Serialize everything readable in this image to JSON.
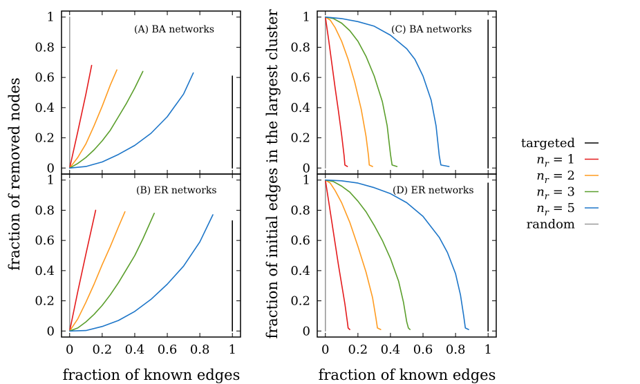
{
  "figure": {
    "xlabel_left": "fraction of known edges",
    "xlabel_right": "fraction of known edges",
    "ylabel_left": "fraction of removed nodes",
    "ylabel_right": "fraction of initial edges in the largest cluster"
  },
  "legend": {
    "position": "right",
    "entries": [
      {
        "key": "targeted",
        "label": "targeted",
        "color": "#000000"
      },
      {
        "key": "nr1",
        "label": "n_r = 1",
        "color": "#e41a1c"
      },
      {
        "key": "nr2",
        "label": "n_r = 2",
        "color": "#ff9b1f"
      },
      {
        "key": "nr3",
        "label": "n_r = 3",
        "color": "#5a9e2b"
      },
      {
        "key": "nr5",
        "label": "n_r = 5",
        "color": "#1c75c8"
      },
      {
        "key": "random",
        "label": "random",
        "color": "#999999"
      }
    ]
  },
  "chart_data": [
    {
      "id": "A",
      "type": "line",
      "annotation": "(A)  BA networks",
      "xlim": [
        -0.05,
        1.05
      ],
      "ylim": [
        -0.04,
        1.04
      ],
      "xticks": [
        "0",
        "0.2",
        "0.4",
        "0.6",
        "0.8",
        "1"
      ],
      "yticks": [
        "0",
        "0.2",
        "0.4",
        "0.6",
        "0.8",
        "1"
      ],
      "grid": false,
      "series": [
        {
          "key": "random",
          "points": [
            [
              0,
              0
            ],
            [
              0,
              1
            ]
          ]
        },
        {
          "key": "nr1",
          "points": [
            [
              0,
              0
            ],
            [
              0.05,
              0.24
            ],
            [
              0.1,
              0.49
            ],
            [
              0.135,
              0.68
            ]
          ]
        },
        {
          "key": "nr2",
          "points": [
            [
              0,
              0
            ],
            [
              0.05,
              0.07
            ],
            [
              0.1,
              0.16
            ],
            [
              0.15,
              0.28
            ],
            [
              0.2,
              0.41
            ],
            [
              0.25,
              0.55
            ],
            [
              0.29,
              0.65
            ]
          ]
        },
        {
          "key": "nr3",
          "points": [
            [
              0,
              0
            ],
            [
              0.05,
              0.03
            ],
            [
              0.1,
              0.07
            ],
            [
              0.15,
              0.12
            ],
            [
              0.2,
              0.18
            ],
            [
              0.25,
              0.25
            ],
            [
              0.3,
              0.34
            ],
            [
              0.35,
              0.43
            ],
            [
              0.4,
              0.53
            ],
            [
              0.45,
              0.64
            ]
          ]
        },
        {
          "key": "nr5",
          "points": [
            [
              0,
              0
            ],
            [
              0.1,
              0.01
            ],
            [
              0.2,
              0.04
            ],
            [
              0.3,
              0.09
            ],
            [
              0.4,
              0.15
            ],
            [
              0.5,
              0.23
            ],
            [
              0.6,
              0.34
            ],
            [
              0.7,
              0.49
            ],
            [
              0.76,
              0.63
            ]
          ]
        },
        {
          "key": "targeted",
          "points": [
            [
              1,
              0
            ],
            [
              1,
              0.61
            ]
          ]
        }
      ]
    },
    {
      "id": "B",
      "type": "line",
      "annotation": "(B)  ER networks",
      "xlim": [
        -0.05,
        1.05
      ],
      "ylim": [
        -0.04,
        1.04
      ],
      "xticks": [
        "0",
        "0.2",
        "0.4",
        "0.6",
        "0.8",
        "1"
      ],
      "yticks": [
        "0",
        "0.2",
        "0.4",
        "0.6",
        "0.8",
        "1"
      ],
      "grid": false,
      "series": [
        {
          "key": "random",
          "points": [
            [
              0,
              0
            ],
            [
              0,
              1
            ]
          ]
        },
        {
          "key": "nr1",
          "points": [
            [
              0,
              0
            ],
            [
              0.05,
              0.26
            ],
            [
              0.1,
              0.51
            ],
            [
              0.16,
              0.8
            ]
          ]
        },
        {
          "key": "nr2",
          "points": [
            [
              0,
              0
            ],
            [
              0.05,
              0.08
            ],
            [
              0.1,
              0.19
            ],
            [
              0.15,
              0.31
            ],
            [
              0.2,
              0.44
            ],
            [
              0.25,
              0.56
            ],
            [
              0.3,
              0.69
            ],
            [
              0.34,
              0.79
            ]
          ]
        },
        {
          "key": "nr3",
          "points": [
            [
              0,
              0
            ],
            [
              0.05,
              0.02
            ],
            [
              0.1,
              0.06
            ],
            [
              0.15,
              0.11
            ],
            [
              0.2,
              0.17
            ],
            [
              0.25,
              0.24
            ],
            [
              0.3,
              0.32
            ],
            [
              0.35,
              0.41
            ],
            [
              0.4,
              0.5
            ],
            [
              0.45,
              0.61
            ],
            [
              0.52,
              0.78
            ]
          ]
        },
        {
          "key": "nr5",
          "points": [
            [
              0,
              0
            ],
            [
              0.1,
              0.003
            ],
            [
              0.2,
              0.03
            ],
            [
              0.3,
              0.07
            ],
            [
              0.4,
              0.13
            ],
            [
              0.5,
              0.21
            ],
            [
              0.6,
              0.31
            ],
            [
              0.7,
              0.43
            ],
            [
              0.8,
              0.59
            ],
            [
              0.88,
              0.77
            ]
          ]
        },
        {
          "key": "targeted",
          "points": [
            [
              1,
              0
            ],
            [
              1,
              0.73
            ]
          ]
        }
      ]
    },
    {
      "id": "C",
      "type": "line",
      "annotation": "(C)  BA networks",
      "xlim": [
        -0.05,
        1.05
      ],
      "ylim": [
        -0.04,
        1.04
      ],
      "xticks": [
        "0",
        "0.2",
        "0.4",
        "0.6",
        "0.8",
        "1"
      ],
      "yticks": [
        "0",
        "0.2",
        "0.4",
        "0.6",
        "0.8",
        "1"
      ],
      "grid": false,
      "series": [
        {
          "key": "random",
          "points": [
            [
              0,
              0
            ],
            [
              0,
              1
            ]
          ]
        },
        {
          "key": "nr1",
          "points": [
            [
              0,
              1
            ],
            [
              0.02,
              0.85
            ],
            [
              0.04,
              0.69
            ],
            [
              0.06,
              0.53
            ],
            [
              0.08,
              0.38
            ],
            [
              0.1,
              0.22
            ],
            [
              0.115,
              0.08
            ],
            [
              0.12,
              0.02
            ],
            [
              0.135,
              0.01
            ]
          ]
        },
        {
          "key": "nr2",
          "points": [
            [
              0,
              1
            ],
            [
              0.03,
              0.98
            ],
            [
              0.06,
              0.93
            ],
            [
              0.1,
              0.84
            ],
            [
              0.14,
              0.72
            ],
            [
              0.18,
              0.57
            ],
            [
              0.22,
              0.39
            ],
            [
              0.25,
              0.21
            ],
            [
              0.265,
              0.08
            ],
            [
              0.27,
              0.02
            ],
            [
              0.29,
              0.01
            ]
          ]
        },
        {
          "key": "nr3",
          "points": [
            [
              0,
              1
            ],
            [
              0.05,
              0.99
            ],
            [
              0.1,
              0.96
            ],
            [
              0.15,
              0.91
            ],
            [
              0.2,
              0.84
            ],
            [
              0.25,
              0.74
            ],
            [
              0.3,
              0.61
            ],
            [
              0.35,
              0.44
            ],
            [
              0.38,
              0.28
            ],
            [
              0.4,
              0.09
            ],
            [
              0.41,
              0.02
            ],
            [
              0.44,
              0.01
            ]
          ]
        },
        {
          "key": "nr5",
          "points": [
            [
              0,
              1
            ],
            [
              0.1,
              0.99
            ],
            [
              0.2,
              0.97
            ],
            [
              0.3,
              0.94
            ],
            [
              0.4,
              0.88
            ],
            [
              0.5,
              0.79
            ],
            [
              0.55,
              0.72
            ],
            [
              0.6,
              0.61
            ],
            [
              0.65,
              0.45
            ],
            [
              0.68,
              0.28
            ],
            [
              0.7,
              0.08
            ],
            [
              0.71,
              0.02
            ],
            [
              0.76,
              0.01
            ]
          ]
        },
        {
          "key": "targeted",
          "points": [
            [
              1,
              0
            ],
            [
              1,
              0.98
            ]
          ]
        }
      ]
    },
    {
      "id": "D",
      "type": "line",
      "annotation": "(D)  ER networks",
      "xlim": [
        -0.05,
        1.05
      ],
      "ylim": [
        -0.04,
        1.04
      ],
      "xticks": [
        "0",
        "0.2",
        "0.4",
        "0.6",
        "0.8",
        "1"
      ],
      "yticks": [
        "0",
        "0.2",
        "0.4",
        "0.6",
        "0.8",
        "1"
      ],
      "grid": false,
      "series": [
        {
          "key": "random",
          "points": [
            [
              0,
              0
            ],
            [
              0,
              1
            ]
          ]
        },
        {
          "key": "nr1",
          "points": [
            [
              0,
              1
            ],
            [
              0.02,
              0.86
            ],
            [
              0.04,
              0.72
            ],
            [
              0.06,
              0.58
            ],
            [
              0.08,
              0.44
            ],
            [
              0.1,
              0.31
            ],
            [
              0.12,
              0.18
            ],
            [
              0.135,
              0.06
            ],
            [
              0.14,
              0.02
            ],
            [
              0.15,
              0.01
            ]
          ]
        },
        {
          "key": "nr2",
          "points": [
            [
              0,
              1
            ],
            [
              0.03,
              0.98
            ],
            [
              0.06,
              0.93
            ],
            [
              0.1,
              0.85
            ],
            [
              0.15,
              0.72
            ],
            [
              0.2,
              0.56
            ],
            [
              0.25,
              0.39
            ],
            [
              0.29,
              0.22
            ],
            [
              0.31,
              0.09
            ],
            [
              0.32,
              0.02
            ],
            [
              0.34,
              0.01
            ]
          ]
        },
        {
          "key": "nr3",
          "points": [
            [
              0,
              1
            ],
            [
              0.05,
              0.99
            ],
            [
              0.1,
              0.96
            ],
            [
              0.15,
              0.92
            ],
            [
              0.2,
              0.86
            ],
            [
              0.25,
              0.79
            ],
            [
              0.3,
              0.7
            ],
            [
              0.35,
              0.6
            ],
            [
              0.4,
              0.48
            ],
            [
              0.45,
              0.33
            ],
            [
              0.48,
              0.19
            ],
            [
              0.5,
              0.06
            ],
            [
              0.51,
              0.02
            ],
            [
              0.52,
              0.01
            ]
          ]
        },
        {
          "key": "nr5",
          "points": [
            [
              0,
              1
            ],
            [
              0.1,
              0.995
            ],
            [
              0.2,
              0.98
            ],
            [
              0.3,
              0.95
            ],
            [
              0.4,
              0.91
            ],
            [
              0.5,
              0.85
            ],
            [
              0.6,
              0.76
            ],
            [
              0.7,
              0.62
            ],
            [
              0.75,
              0.52
            ],
            [
              0.8,
              0.38
            ],
            [
              0.83,
              0.24
            ],
            [
              0.85,
              0.1
            ],
            [
              0.86,
              0.02
            ],
            [
              0.88,
              0.01
            ]
          ]
        },
        {
          "key": "targeted",
          "points": [
            [
              1,
              0
            ],
            [
              1,
              0.98
            ]
          ]
        }
      ]
    }
  ]
}
